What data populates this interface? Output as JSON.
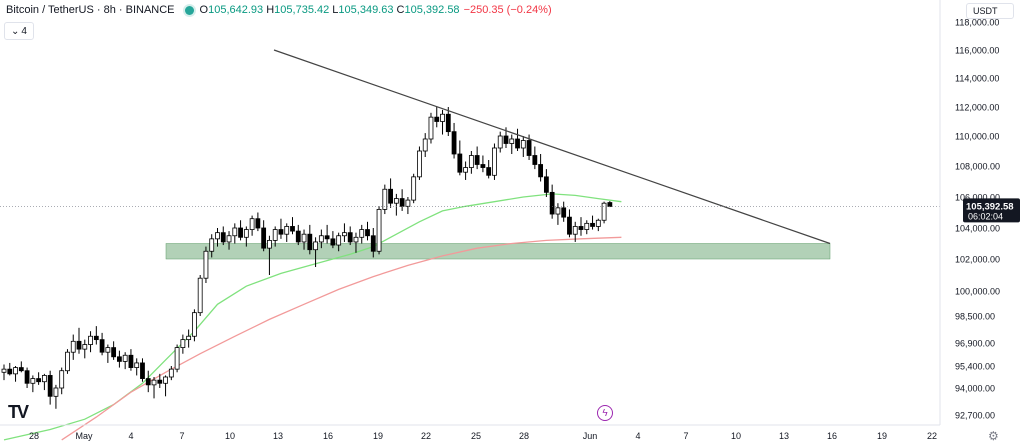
{
  "header": {
    "title": "Bitcoin / TetherUS · 8h · BINANCE",
    "o_label": "O",
    "o_value": "105,642.93",
    "h_label": "H",
    "h_value": "105,735.42",
    "l_label": "L",
    "l_value": "105,349.63",
    "c_label": "C",
    "c_value": "105,392.58",
    "change": "−250.35 (−0.24%)",
    "status_color": "#26a69a"
  },
  "legend_toggle": {
    "icon": "chevron-down-icon",
    "count": "4"
  },
  "currency": {
    "label": "USDT"
  },
  "logo": {
    "text": "TV"
  },
  "icons": {
    "settings": "gear-icon",
    "replay": "lightning-icon"
  },
  "chart_data": {
    "type": "candlestick",
    "symbol": "BTCUSDT",
    "interval": "8h",
    "x_labels": [
      "28",
      "May",
      "4",
      "7",
      "10",
      "13",
      "16",
      "19",
      "22",
      "25",
      "28",
      "Jun",
      "4",
      "7",
      "10",
      "13",
      "16",
      "19",
      "22"
    ],
    "y_ticks": [
      92700,
      94000,
      95400,
      96900,
      98500,
      100000,
      102000,
      104000,
      106000,
      108000,
      110000,
      112000,
      114000,
      116000,
      118000
    ],
    "y_tick_labels": [
      "92,700.00",
      "94,000.00",
      "95,400.00",
      "96,900.00",
      "98,500.00",
      "100,000.00",
      "102,000.00",
      "104,000.00",
      "106,000.00",
      "108,000.00",
      "110,000.00",
      "112,000.00",
      "114,000.00",
      "116,000.00",
      "118,000.00"
    ],
    "last_price": "105,392.58",
    "countdown": "06:02:04",
    "last_price_value": 105392.58,
    "colors": {
      "up": "#ffffff",
      "down": "#000000",
      "wick": "#000000",
      "ema_fast": "#80e27e",
      "ema_slow": "#f29a9a",
      "trendline": "#444444",
      "zone": "#7fb387",
      "price_line": "#787b86"
    },
    "zone": {
      "x_start": "May 6",
      "x_end": "Jun 15",
      "low": 102000,
      "high": 103000
    },
    "trendline": {
      "start": [
        "May 13",
        116000
      ],
      "end": [
        "Jun 15",
        103000
      ]
    },
    "candles": [
      [
        95000,
        95500,
        94500,
        95200
      ],
      [
        95200,
        95600,
        94800,
        94900
      ],
      [
        94900,
        95400,
        94400,
        95300
      ],
      [
        95300,
        95700,
        95000,
        95100
      ],
      [
        95100,
        95300,
        94000,
        94300
      ],
      [
        94300,
        94800,
        93800,
        94600
      ],
      [
        94600,
        95000,
        94200,
        94400
      ],
      [
        94400,
        94900,
        93900,
        94800
      ],
      [
        94800,
        95100,
        93200,
        93600
      ],
      [
        93600,
        94200,
        93000,
        94000
      ],
      [
        94000,
        95300,
        93700,
        95100
      ],
      [
        95100,
        96500,
        94900,
        96300
      ],
      [
        96300,
        97400,
        95800,
        97000
      ],
      [
        97000,
        97800,
        96200,
        96500
      ],
      [
        96500,
        97100,
        95900,
        96800
      ],
      [
        96800,
        97600,
        96300,
        97300
      ],
      [
        97300,
        97900,
        96800,
        97100
      ],
      [
        97100,
        97500,
        96100,
        96300
      ],
      [
        96300,
        96800,
        95600,
        96600
      ],
      [
        96600,
        97000,
        95800,
        96000
      ],
      [
        96000,
        96400,
        95300,
        95700
      ],
      [
        95700,
        96300,
        95200,
        96100
      ],
      [
        96100,
        96500,
        95100,
        95300
      ],
      [
        95300,
        95900,
        94800,
        95600
      ],
      [
        95600,
        95900,
        94400,
        94600
      ],
      [
        94600,
        95100,
        93800,
        94200
      ],
      [
        94200,
        94700,
        93500,
        94500
      ],
      [
        94500,
        94900,
        94000,
        94300
      ],
      [
        94300,
        94800,
        93600,
        94700
      ],
      [
        94700,
        95400,
        94500,
        95200
      ],
      [
        95200,
        96800,
        95000,
        96600
      ],
      [
        96600,
        97400,
        96200,
        97100
      ],
      [
        97100,
        97700,
        96600,
        97300
      ],
      [
        97300,
        98900,
        97000,
        98700
      ],
      [
        98700,
        101000,
        98500,
        100800
      ],
      [
        100800,
        102800,
        100500,
        102500
      ],
      [
        102500,
        103600,
        102100,
        103300
      ],
      [
        103300,
        104000,
        102800,
        103700
      ],
      [
        103700,
        104100,
        102900,
        103100
      ],
      [
        103100,
        103800,
        102600,
        103500
      ],
      [
        103500,
        104300,
        103000,
        104000
      ],
      [
        104000,
        104500,
        103200,
        103400
      ],
      [
        103400,
        104100,
        102800,
        103900
      ],
      [
        103900,
        104800,
        103500,
        104600
      ],
      [
        104600,
        105000,
        103800,
        104000
      ],
      [
        104000,
        104500,
        102500,
        102700
      ],
      [
        102700,
        103500,
        101000,
        103200
      ],
      [
        103200,
        104100,
        102800,
        103900
      ],
      [
        103900,
        104600,
        103300,
        103600
      ],
      [
        103600,
        104300,
        103100,
        104100
      ],
      [
        104100,
        104700,
        103600,
        103800
      ],
      [
        103800,
        104200,
        102900,
        103100
      ],
      [
        103100,
        103900,
        102600,
        103600
      ],
      [
        103600,
        104200,
        102300,
        102600
      ],
      [
        102600,
        103400,
        101500,
        103100
      ],
      [
        103100,
        103900,
        102700,
        103500
      ],
      [
        103500,
        104200,
        103000,
        103300
      ],
      [
        103300,
        103800,
        102700,
        102900
      ],
      [
        102900,
        103700,
        102500,
        103500
      ],
      [
        103500,
        104300,
        103100,
        103700
      ],
      [
        103700,
        104100,
        102900,
        103100
      ],
      [
        103100,
        103700,
        102400,
        103400
      ],
      [
        103400,
        104200,
        103000,
        103900
      ],
      [
        103900,
        104400,
        103200,
        103500
      ],
      [
        103500,
        104000,
        102100,
        102500
      ],
      [
        102500,
        105400,
        102300,
        105200
      ],
      [
        105200,
        106800,
        104900,
        106500
      ],
      [
        106500,
        107200,
        105300,
        105600
      ],
      [
        105600,
        106200,
        104800,
        105900
      ],
      [
        105900,
        106500,
        105100,
        105400
      ],
      [
        105400,
        106000,
        104900,
        105800
      ],
      [
        105800,
        107500,
        105600,
        107300
      ],
      [
        107300,
        109300,
        107100,
        109000
      ],
      [
        109000,
        110200,
        108600,
        109800
      ],
      [
        109800,
        111600,
        109500,
        111300
      ],
      [
        111300,
        112000,
        110600,
        111000
      ],
      [
        111000,
        111800,
        110100,
        111500
      ],
      [
        111500,
        112000,
        110000,
        110300
      ],
      [
        110300,
        110900,
        108500,
        108800
      ],
      [
        108800,
        109700,
        107400,
        107600
      ],
      [
        107600,
        108300,
        107100,
        107900
      ],
      [
        107900,
        109000,
        107500,
        108700
      ],
      [
        108700,
        109300,
        107800,
        108100
      ],
      [
        108100,
        108700,
        107600,
        107900
      ],
      [
        107900,
        108400,
        107200,
        107400
      ],
      [
        107400,
        109500,
        107100,
        109200
      ],
      [
        109200,
        110300,
        108900,
        110000
      ],
      [
        110000,
        110600,
        109200,
        109500
      ],
      [
        109500,
        110100,
        108800,
        109800
      ],
      [
        109800,
        110500,
        109000,
        109200
      ],
      [
        109200,
        110000,
        108600,
        109700
      ],
      [
        109700,
        110100,
        108400,
        108700
      ],
      [
        108700,
        109300,
        107800,
        108100
      ],
      [
        108100,
        108800,
        107000,
        107300
      ],
      [
        107300,
        107800,
        106000,
        106300
      ],
      [
        106300,
        106800,
        104600,
        104900
      ],
      [
        104900,
        105600,
        104200,
        105300
      ],
      [
        105300,
        105700,
        104400,
        104700
      ],
      [
        104700,
        105200,
        103400,
        103600
      ],
      [
        103600,
        104400,
        103100,
        104100
      ],
      [
        104100,
        104700,
        103500,
        103900
      ],
      [
        103900,
        104500,
        103600,
        104300
      ],
      [
        104300,
        104800,
        103900,
        104100
      ],
      [
        104100,
        104600,
        103800,
        104500
      ],
      [
        104500,
        105700,
        104300,
        105600
      ],
      [
        105642.93,
        105735.42,
        105349.63,
        105392.58
      ]
    ],
    "ema_fast": [
      [
        0,
        91500
      ],
      [
        8,
        92000
      ],
      [
        14,
        92500
      ],
      [
        19,
        93200
      ],
      [
        24,
        94300
      ],
      [
        28,
        95800
      ],
      [
        33,
        97600
      ],
      [
        37,
        99200
      ],
      [
        42,
        100300
      ],
      [
        48,
        101100
      ],
      [
        54,
        101700
      ],
      [
        60,
        102300
      ],
      [
        64,
        102800
      ],
      [
        68,
        103600
      ],
      [
        72,
        104400
      ],
      [
        76,
        105100
      ],
      [
        80,
        105400
      ],
      [
        85,
        105700
      ],
      [
        90,
        106000
      ],
      [
        95,
        106200
      ],
      [
        99,
        106100
      ],
      [
        103,
        105900
      ],
      [
        107,
        105700
      ]
    ],
    "ema_slow": [
      [
        10,
        91500
      ],
      [
        16,
        92600
      ],
      [
        22,
        93800
      ],
      [
        28,
        95000
      ],
      [
        34,
        96200
      ],
      [
        40,
        97300
      ],
      [
        46,
        98300
      ],
      [
        52,
        99200
      ],
      [
        58,
        100100
      ],
      [
        64,
        100900
      ],
      [
        70,
        101600
      ],
      [
        76,
        102200
      ],
      [
        82,
        102700
      ],
      [
        88,
        103000
      ],
      [
        94,
        103200
      ],
      [
        100,
        103300
      ],
      [
        107,
        103400
      ]
    ]
  }
}
